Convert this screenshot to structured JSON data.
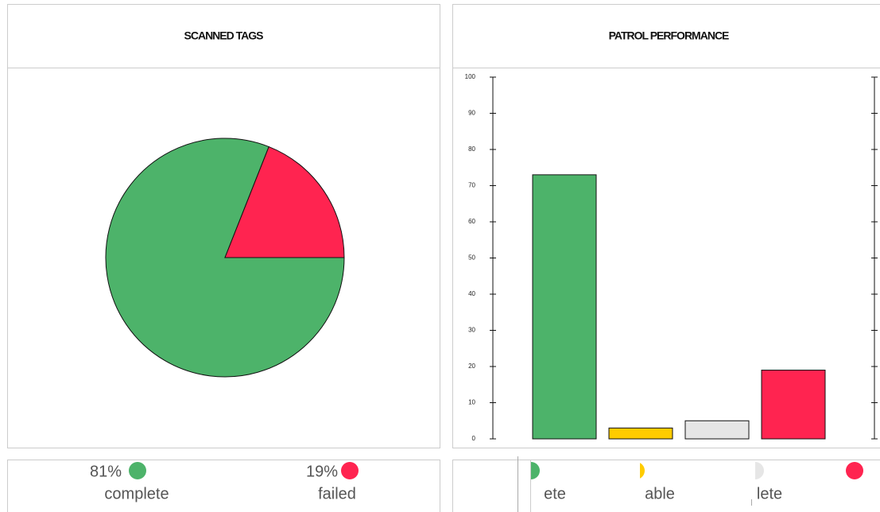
{
  "chart_data": [
    {
      "type": "pie",
      "title": "SCANNED TAGS",
      "categories": [
        "complete",
        "failed"
      ],
      "values": [
        81,
        19
      ],
      "value_labels": [
        "81%",
        "19%"
      ],
      "colors": [
        "#4db36a",
        "#ff2450"
      ]
    },
    {
      "type": "bar",
      "title": "PATROL PERFORMANCE",
      "categories": [
        "ete",
        "able",
        "lete",
        null
      ],
      "values": [
        73,
        3,
        5,
        19
      ],
      "colors": [
        "#4db36a",
        "#ffcc00",
        "#e6e6e6",
        "#ff2450"
      ],
      "ylim": [
        0,
        100
      ],
      "yticks": [
        0,
        10,
        20,
        30,
        40,
        50,
        60,
        70,
        80,
        90,
        100
      ]
    }
  ]
}
